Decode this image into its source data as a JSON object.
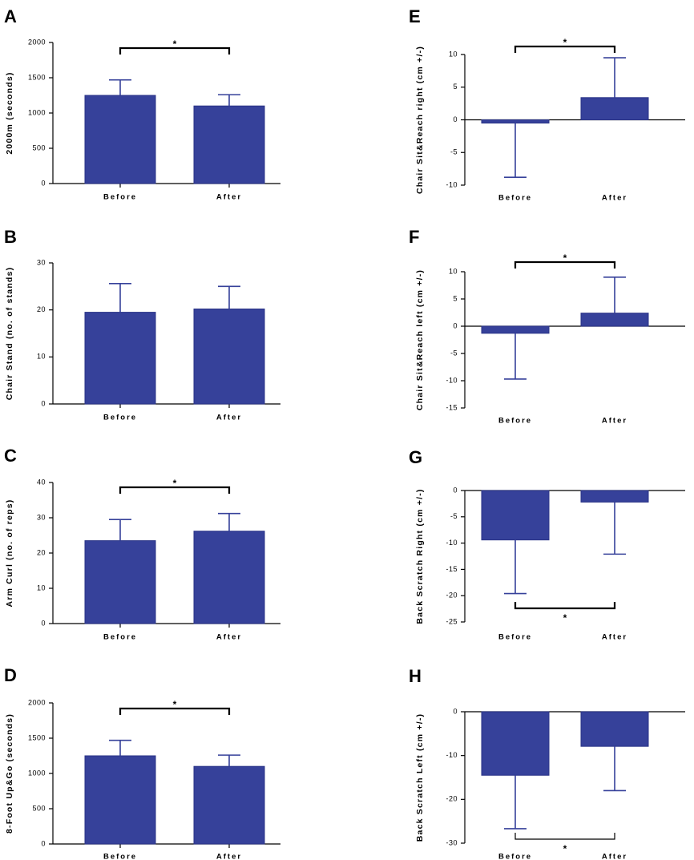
{
  "chart_data": [
    {
      "panel": "A",
      "type": "bar",
      "categories": [
        "Before",
        "After"
      ],
      "values": [
        1250,
        1100
      ],
      "errors": [
        220,
        160
      ],
      "ylabel": "2000m (seconds)",
      "ylim": [
        0,
        2000
      ],
      "yticks": [
        0,
        500,
        1000,
        1500,
        2000
      ],
      "significance": {
        "label": "*",
        "position": "above"
      }
    },
    {
      "panel": "B",
      "type": "bar",
      "categories": [
        "Before",
        "After"
      ],
      "values": [
        19.5,
        20.2
      ],
      "errors": [
        6.1,
        4.8
      ],
      "ylabel": "Chair Stand (no. of stands)",
      "ylim": [
        0,
        30
      ],
      "yticks": [
        0,
        10,
        20,
        30
      ],
      "significance": null
    },
    {
      "panel": "C",
      "type": "bar",
      "categories": [
        "Before",
        "After"
      ],
      "values": [
        23.5,
        26.2
      ],
      "errors": [
        6.0,
        5.0
      ],
      "ylabel": "Arm Curl (no. of reps)",
      "ylim": [
        0,
        40
      ],
      "yticks": [
        0,
        10,
        20,
        30,
        40
      ],
      "significance": {
        "label": "*",
        "position": "above"
      }
    },
    {
      "panel": "D",
      "type": "bar",
      "categories": [
        "Before",
        "After"
      ],
      "values": [
        1250,
        1100
      ],
      "errors": [
        220,
        160
      ],
      "ylabel": "8-Foot Up&Go (seconds)",
      "ylim": [
        0,
        2000
      ],
      "yticks": [
        0,
        500,
        1000,
        1500,
        2000
      ],
      "significance": {
        "label": "*",
        "position": "above"
      }
    },
    {
      "panel": "E",
      "type": "bar",
      "categories": [
        "Before",
        "After"
      ],
      "values": [
        -0.5,
        3.4
      ],
      "errors": [
        8.3,
        6.1
      ],
      "ylabel": "Chair Sit&Reach right (cm +/-)",
      "ylim": [
        -10,
        10
      ],
      "yticks": [
        -10,
        -5,
        0,
        5,
        10
      ],
      "significance": {
        "label": "*",
        "position": "above"
      }
    },
    {
      "panel": "F",
      "type": "bar",
      "categories": [
        "Before",
        "After"
      ],
      "values": [
        -1.3,
        2.4
      ],
      "errors": [
        8.4,
        6.6
      ],
      "ylabel": "Chair Sit&Reach left (cm +/-)",
      "ylim": [
        -15,
        10
      ],
      "yticks": [
        -15,
        -10,
        -5,
        0,
        5,
        10
      ],
      "significance": {
        "label": "*",
        "position": "above"
      }
    },
    {
      "panel": "G",
      "type": "bar",
      "categories": [
        "Before",
        "After"
      ],
      "values": [
        -9.4,
        -2.2
      ],
      "errors": [
        10.2,
        9.9
      ],
      "ylabel": "Back Scratch Right (cm +/-)",
      "ylim": [
        -25,
        0
      ],
      "yticks": [
        -25,
        -20,
        -15,
        -10,
        -5,
        0
      ],
      "significance": {
        "label": "*",
        "position": "below"
      }
    },
    {
      "panel": "H",
      "type": "bar",
      "categories": [
        "Before",
        "After"
      ],
      "values": [
        -14.5,
        -7.9
      ],
      "errors": [
        12.2,
        10.1
      ],
      "ylabel": "Back Scratch Left (cm +/-)",
      "ylim": [
        -30,
        0
      ],
      "yticks": [
        -30,
        -20,
        -10,
        0
      ],
      "significance": {
        "label": "*",
        "position": "below"
      }
    }
  ],
  "colors": {
    "bar": "#36419A",
    "bar_edge": "#2A3387",
    "error": "#36419A",
    "axis": "#000000"
  }
}
